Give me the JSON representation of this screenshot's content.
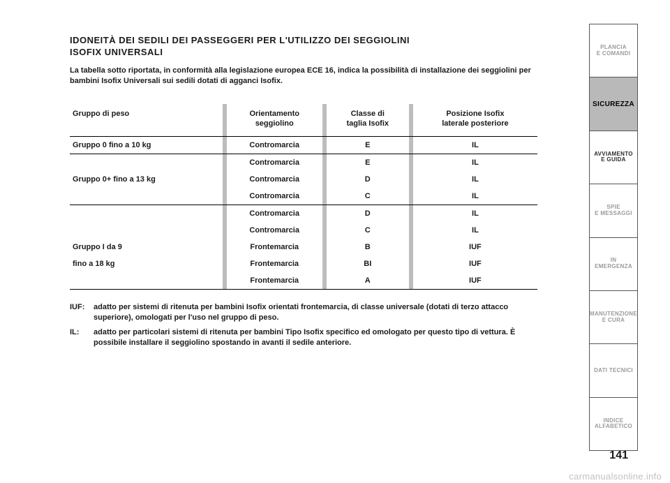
{
  "title_line1": "IDONEITÀ DEI SEDILI DEI PASSEGGERI PER L'UTILIZZO DEI SEGGIOLINI",
  "title_line2": "ISOFIX UNIVERSALI",
  "intro": "La tabella sotto riportata, in conformità alla legislazione europea ECE 16, indica la possibilità di installazione dei seggiolini per bambini Isofix Universali sui sedili dotati di agganci Isofix.",
  "headers": {
    "c1": "Gruppo di peso",
    "c2a": "Orientamento",
    "c2b": "seggiolino",
    "c3a": "Classe di",
    "c3b": "taglia Isofix",
    "c4a": "Posizione Isofix",
    "c4b": "laterale posteriore"
  },
  "rows": [
    {
      "g": "Gruppo 0 fino a 10 kg",
      "o": "Contromarcia",
      "c": "E",
      "p": "IL",
      "sep": true
    },
    {
      "g": "",
      "o": "Contromarcia",
      "c": "E",
      "p": "IL"
    },
    {
      "g": "Gruppo 0+ fino a 13 kg",
      "o": "Contromarcia",
      "c": "D",
      "p": "IL"
    },
    {
      "g": "",
      "o": "Contromarcia",
      "c": "C",
      "p": "IL",
      "sep": true
    },
    {
      "g": "",
      "o": "Contromarcia",
      "c": "D",
      "p": "IL"
    },
    {
      "g": "",
      "o": "Contromarcia",
      "c": "C",
      "p": "IL"
    },
    {
      "g": "Gruppo I da 9",
      "o": "Frontemarcia",
      "c": "B",
      "p": "IUF"
    },
    {
      "g": "fino a 18 kg",
      "o": "Frontemarcia",
      "c": "BI",
      "p": "IUF"
    },
    {
      "g": "",
      "o": "Frontemarcia",
      "c": "A",
      "p": "IUF",
      "sep": true
    }
  ],
  "legend": {
    "iuf_k": "IUF:",
    "iuf_v": "adatto per sistemi di ritenuta per bambini Isofix orientati frontemarcia, di classe universale (dotati di terzo attacco superiore), omologati per l'uso nel gruppo di peso.",
    "il_k": "IL:",
    "il_v": "adatto per particolari sistemi di ritenuta per bambini Tipo Isofix specifico ed omologato per questo tipo di vettura. È possibile installare il seggiolino spostando in avanti il sedile anteriore."
  },
  "tabs": [
    {
      "label": "PLANCIA\nE COMANDI",
      "dim": true
    },
    {
      "label": "SICUREZZA",
      "active": true
    },
    {
      "label": "AVVIAMENTO\nE GUIDA"
    },
    {
      "label": "SPIE\nE MESSAGGI",
      "dim": true
    },
    {
      "label": "IN EMERGENZA",
      "dim": true
    },
    {
      "label": "MANUTENZIONE\nE CURA",
      "dim": true
    },
    {
      "label": "DATI TECNICI",
      "dim": true
    },
    {
      "label": "INDICE\nALFABETICO",
      "dim": true
    }
  ],
  "pagenum": "141",
  "watermark": "carmanualsonline.info"
}
